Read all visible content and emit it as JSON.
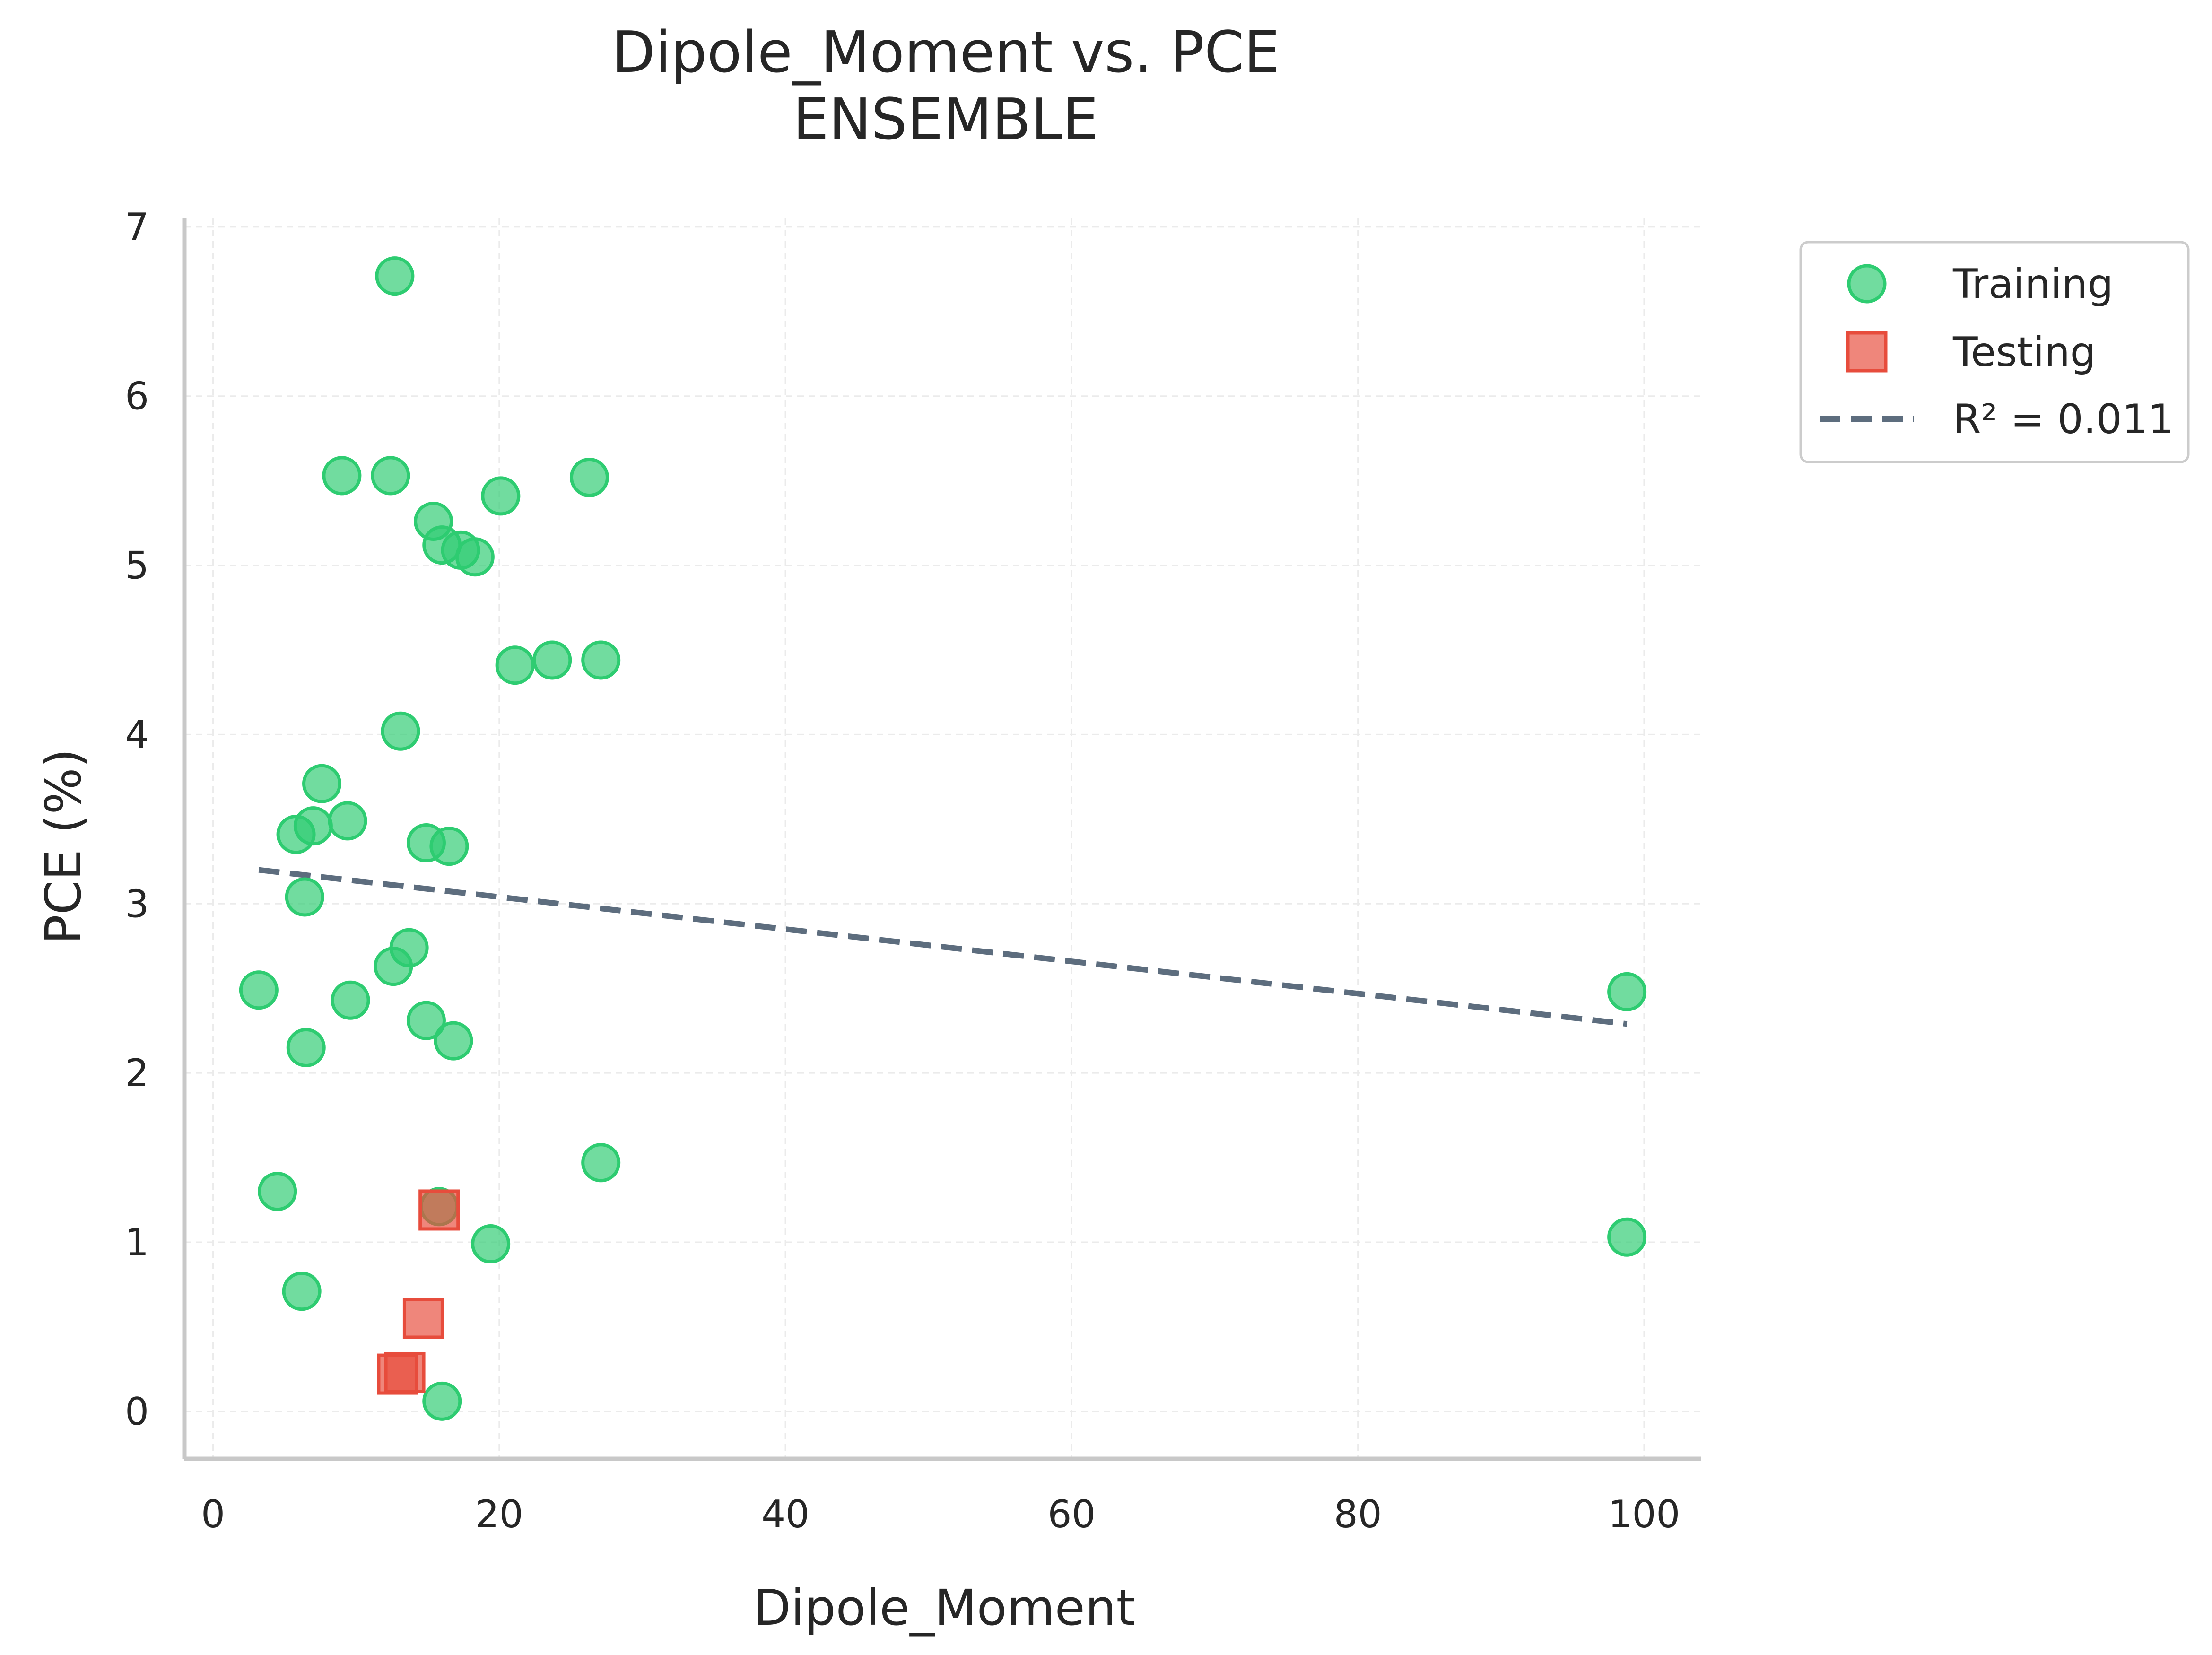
{
  "chart_data": {
    "type": "scatter",
    "title": [
      "Dipole_Moment vs. PCE",
      "ENSEMBLE"
    ],
    "xlabel": "Dipole_Moment",
    "ylabel": "PCE (%)",
    "xlim": [
      -2,
      104
    ],
    "ylim": [
      -0.28,
      7.05
    ],
    "xticks": [
      0,
      20,
      40,
      60,
      80,
      100
    ],
    "yticks": [
      0,
      1,
      2,
      3,
      4,
      5,
      6,
      7
    ],
    "grid": true,
    "legend_position": "outside-top-right",
    "series": [
      {
        "name": "Training",
        "marker": "circle",
        "color": "#2ecc71",
        "points": [
          {
            "x": 12.7,
            "y": 6.71
          },
          {
            "x": 9.0,
            "y": 5.53
          },
          {
            "x": 12.4,
            "y": 5.53
          },
          {
            "x": 26.3,
            "y": 5.52
          },
          {
            "x": 20.1,
            "y": 5.41
          },
          {
            "x": 15.4,
            "y": 5.26
          },
          {
            "x": 16.0,
            "y": 5.12
          },
          {
            "x": 17.3,
            "y": 5.09
          },
          {
            "x": 18.3,
            "y": 5.05
          },
          {
            "x": 21.1,
            "y": 4.41
          },
          {
            "x": 23.7,
            "y": 4.44
          },
          {
            "x": 27.1,
            "y": 4.44
          },
          {
            "x": 13.1,
            "y": 4.02
          },
          {
            "x": 7.6,
            "y": 3.71
          },
          {
            "x": 9.4,
            "y": 3.49
          },
          {
            "x": 7.0,
            "y": 3.46
          },
          {
            "x": 5.8,
            "y": 3.41
          },
          {
            "x": 14.9,
            "y": 3.36
          },
          {
            "x": 16.5,
            "y": 3.34
          },
          {
            "x": 6.4,
            "y": 3.04
          },
          {
            "x": 13.7,
            "y": 2.74
          },
          {
            "x": 12.6,
            "y": 2.63
          },
          {
            "x": 3.2,
            "y": 2.49
          },
          {
            "x": 9.6,
            "y": 2.43
          },
          {
            "x": 14.9,
            "y": 2.31
          },
          {
            "x": 16.8,
            "y": 2.19
          },
          {
            "x": 6.5,
            "y": 2.15
          },
          {
            "x": 98.8,
            "y": 2.48
          },
          {
            "x": 27.1,
            "y": 1.47
          },
          {
            "x": 4.5,
            "y": 1.3
          },
          {
            "x": 15.8,
            "y": 1.21
          },
          {
            "x": 19.4,
            "y": 0.99
          },
          {
            "x": 98.8,
            "y": 1.03
          },
          {
            "x": 6.2,
            "y": 0.71
          },
          {
            "x": 16.0,
            "y": 0.06
          }
        ]
      },
      {
        "name": "Testing",
        "marker": "square",
        "color": "#e74c3c",
        "points": [
          {
            "x": 15.8,
            "y": 1.19
          },
          {
            "x": 14.7,
            "y": 0.55
          },
          {
            "x": 13.4,
            "y": 0.23
          },
          {
            "x": 12.9,
            "y": 0.22
          }
        ]
      },
      {
        "name": "R² = 0.011",
        "type": "line",
        "style": "dashed",
        "color": "#5d6d7e",
        "points": [
          {
            "x": 3.2,
            "y": 3.2
          },
          {
            "x": 98.8,
            "y": 2.29
          }
        ]
      }
    ]
  }
}
